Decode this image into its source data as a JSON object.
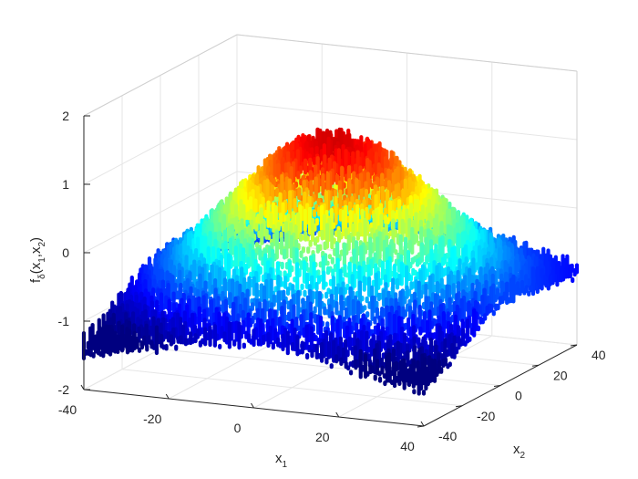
{
  "chart_data": {
    "type": "surface3d",
    "xlabel": {
      "base": "x",
      "sub": "1"
    },
    "ylabel": {
      "base": "x",
      "sub": "2"
    },
    "zlabel": {
      "base": "f",
      "sub": "δ",
      "args": [
        "(x",
        "1",
        ",x",
        "2",
        ")"
      ]
    },
    "x_ticks": [
      "-40",
      "-20",
      "0",
      "20",
      "40"
    ],
    "x_tick_values": [
      -40,
      -20,
      0,
      20,
      40
    ],
    "y_ticks": [
      "-40",
      "-20",
      "0",
      "20",
      "40"
    ],
    "y_tick_values": [
      -40,
      -20,
      0,
      20,
      40
    ],
    "z_ticks": [
      "-2",
      "-1",
      "0",
      "1",
      "2"
    ],
    "z_tick_values": [
      -2,
      -1,
      0,
      1,
      2
    ],
    "xlim": [
      -40,
      40
    ],
    "ylim": [
      -40,
      40
    ],
    "zlim": [
      -2,
      2
    ],
    "grid": true,
    "colormap": "jet",
    "surface_description_values": {
      "peak_z": 1.5,
      "min_z": -1.2,
      "noise_amplitude": 0.3
    }
  }
}
